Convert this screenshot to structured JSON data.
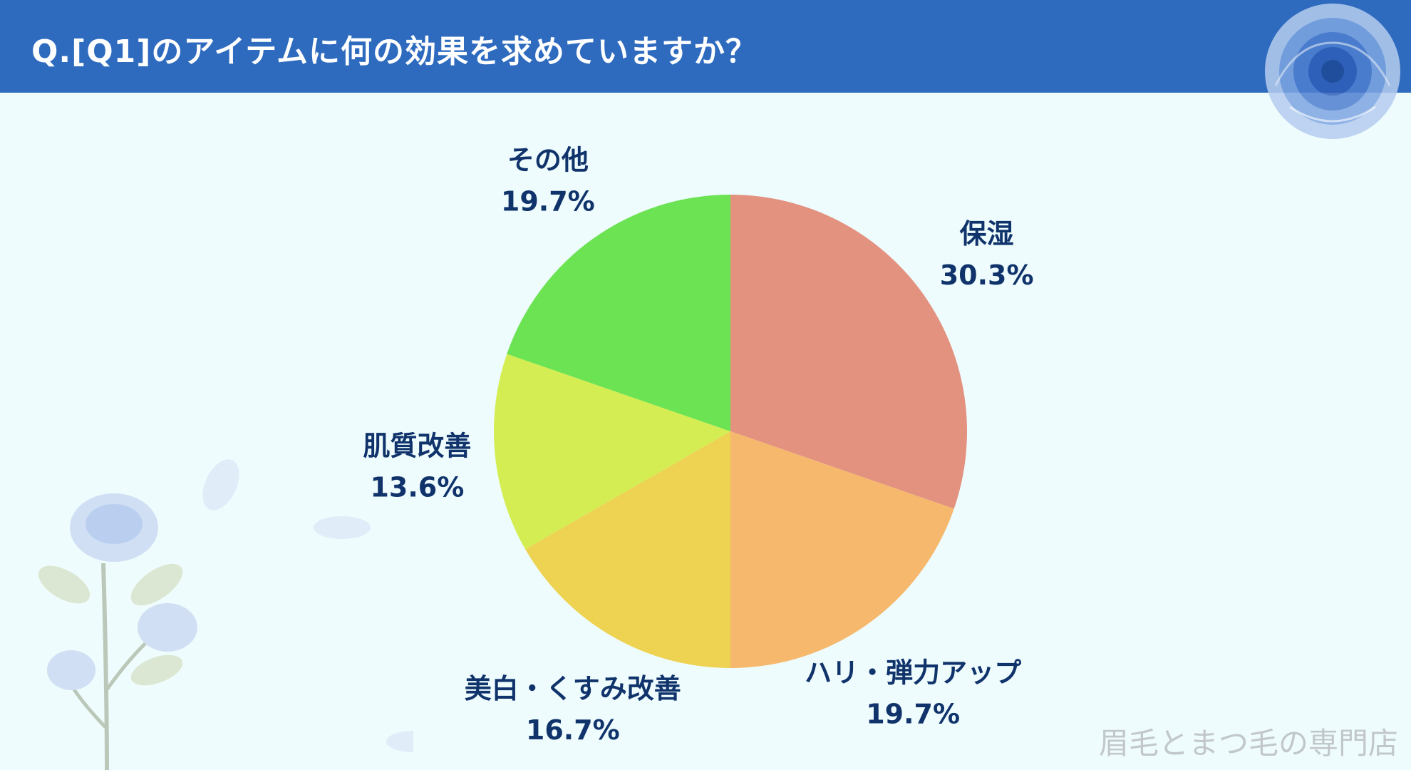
{
  "header": {
    "title": "Q.[Q1]のアイテムに何の効果を求めていますか？",
    "background": "#2e6bbf"
  },
  "chart_data": {
    "type": "pie",
    "title": "",
    "start": "12 o'clock, clockwise",
    "slices": [
      {
        "label": "保湿",
        "value": 30.3,
        "value_label": "30.3%",
        "color": "#e3927f"
      },
      {
        "label": "ハリ・弾力アップ",
        "value": 19.7,
        "value_label": "19.7%",
        "color": "#f5b86d"
      },
      {
        "label": "美白・くすみ改善",
        "value": 16.7,
        "value_label": "16.7%",
        "color": "#eed252"
      },
      {
        "label": "肌質改善",
        "value": 13.6,
        "value_label": "13.6%",
        "color": "#d4ed52"
      },
      {
        "label": "その他",
        "value": 19.7,
        "value_label": "19.7%",
        "color": "#6ce353"
      }
    ]
  },
  "footer": {
    "brand": "眉毛とまつ毛の専門店"
  },
  "decorations": [
    "blue-rose-icon",
    "rose-branch-icon"
  ]
}
